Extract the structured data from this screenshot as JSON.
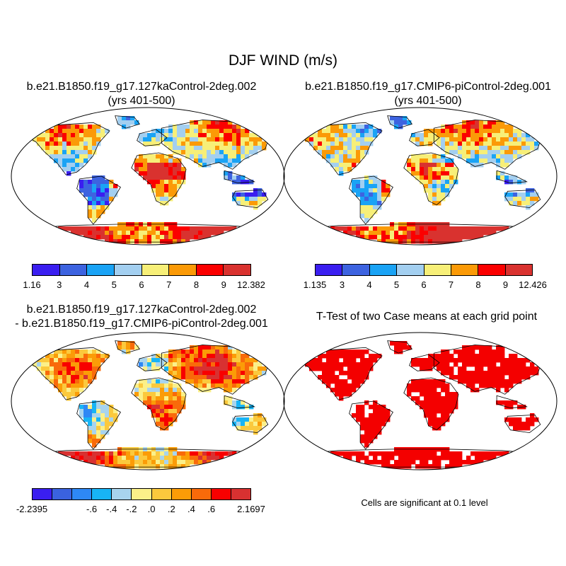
{
  "title": "DJF WIND (m/s)",
  "colors": {
    "abs_palette": [
      "#3a1ef0",
      "#3d63e0",
      "#1aa3f5",
      "#a3cff0",
      "#f7ef78",
      "#fb9a07",
      "#fb0000",
      "#d9322f"
    ],
    "diff_palette": [
      "#3a1ef0",
      "#3a62df",
      "#2e88f5",
      "#18b4f5",
      "#a8d4ee",
      "#fbf089",
      "#fbc93d",
      "#fb9c07",
      "#f96a0a",
      "#f80000",
      "#d83131"
    ],
    "significance": "#f40000",
    "land_outline": "#000000"
  },
  "panels": {
    "a": {
      "title_line1": "b.e21.B1850.f19_g17.127kaControl-2deg.002",
      "title_line2": "(yrs 401-500)",
      "colorbar_labels": [
        "1.16",
        "3",
        "4",
        "5",
        "6",
        "7",
        "8",
        "9",
        "12.382"
      ]
    },
    "b": {
      "title_line1": "b.e21.B1850.f19_g17.CMIP6-piControl-2deg.001",
      "title_line2": "(yrs 401-500)",
      "colorbar_labels": [
        "1.135",
        "3",
        "4",
        "5",
        "6",
        "7",
        "8",
        "9",
        "12.426"
      ]
    },
    "c": {
      "title_line1": "b.e21.B1850.f19_g17.127kaControl-2deg.002",
      "title_line2": "- b.e21.B1850.f19_g17.CMIP6-piControl-2deg.001",
      "colorbar_labels": [
        "-2.2395",
        "-.6",
        "-.4",
        "-.2",
        ".0",
        ".2",
        ".4",
        ".6",
        "2.1697"
      ]
    },
    "d": {
      "title": "T-Test of two Case means at each grid point",
      "footnote": "Cells are significant at 0.1 level"
    }
  }
}
